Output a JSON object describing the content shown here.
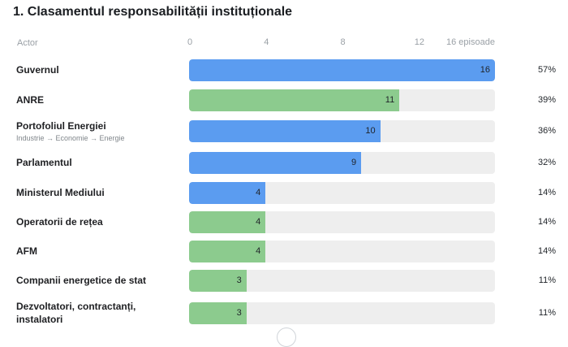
{
  "title": "1. Clasamentul responsabilității instituționale",
  "header": {
    "actor_label": "Actor"
  },
  "colors": {
    "blue": "#5b9cf0",
    "green": "#8ccb8e",
    "track": "#eeeeee"
  },
  "chart_data": {
    "type": "bar",
    "orientation": "horizontal",
    "title": "1. Clasamentul responsabilității instituționale",
    "xlim": [
      0,
      16
    ],
    "x_ticks": [
      "0",
      "4",
      "8",
      "12",
      "16 episoade"
    ],
    "categories": [
      "Guvernul",
      "ANRE",
      "Portofoliul Energiei",
      "Parlamentul",
      "Ministerul Mediului",
      "Operatorii de rețea",
      "AFM",
      "Companii energetice de stat",
      "Dezvoltatori, contractanți, instalatori"
    ],
    "rows": [
      {
        "label": "Guvernul",
        "sublabel": "",
        "value": 16,
        "value_label": "16",
        "percent": "57%",
        "color": "blue"
      },
      {
        "label": "ANRE",
        "sublabel": "",
        "value": 11,
        "value_label": "11",
        "percent": "39%",
        "color": "green"
      },
      {
        "label": "Portofoliul Energiei",
        "sublabel": "Industrie → Economie → Energie",
        "value": 10,
        "value_label": "10",
        "percent": "36%",
        "color": "blue"
      },
      {
        "label": "Parlamentul",
        "sublabel": "",
        "value": 9,
        "value_label": "9",
        "percent": "32%",
        "color": "blue"
      },
      {
        "label": "Ministerul Mediului",
        "sublabel": "",
        "value": 4,
        "value_label": "4",
        "percent": "14%",
        "color": "blue"
      },
      {
        "label": "Operatorii de rețea",
        "sublabel": "",
        "value": 4,
        "value_label": "4",
        "percent": "14%",
        "color": "green"
      },
      {
        "label": "AFM",
        "sublabel": "",
        "value": 4,
        "value_label": "4",
        "percent": "14%",
        "color": "green"
      },
      {
        "label": "Companii energetice de stat",
        "sublabel": "",
        "value": 3,
        "value_label": "3",
        "percent": "11%",
        "color": "green"
      },
      {
        "label": "Dezvoltatori, contractanți, instalatori",
        "sublabel": "",
        "value": 3,
        "value_label": "3",
        "percent": "11%",
        "color": "green"
      }
    ]
  }
}
